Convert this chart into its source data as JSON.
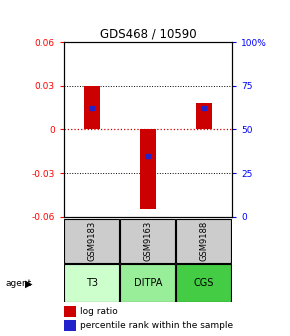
{
  "title": "GDS468 / 10590",
  "ylim": [
    -0.06,
    0.06
  ],
  "yticks_left": [
    -0.06,
    -0.03,
    0,
    0.03,
    0.06
  ],
  "samples": [
    "GSM9183",
    "GSM9163",
    "GSM9188"
  ],
  "agents": [
    "T3",
    "DITPA",
    "CGS"
  ],
  "log_ratios": [
    0.03,
    -0.055,
    0.018
  ],
  "percentile_ranks": [
    0.62,
    0.35,
    0.62
  ],
  "bar_color": "#cc0000",
  "pct_color": "#2222cc",
  "zero_line_color": "#cc0000",
  "sample_bg": "#cccccc",
  "agent_colors": [
    "#ccffcc",
    "#99ee99",
    "#44cc44"
  ],
  "hgrid_vals": [
    -0.03,
    0.03
  ],
  "right_tick_positions": [
    -0.06,
    -0.03,
    0.0,
    0.03,
    0.06
  ],
  "right_tick_labels": [
    "0",
    "25",
    "50",
    "75",
    "100%"
  ]
}
